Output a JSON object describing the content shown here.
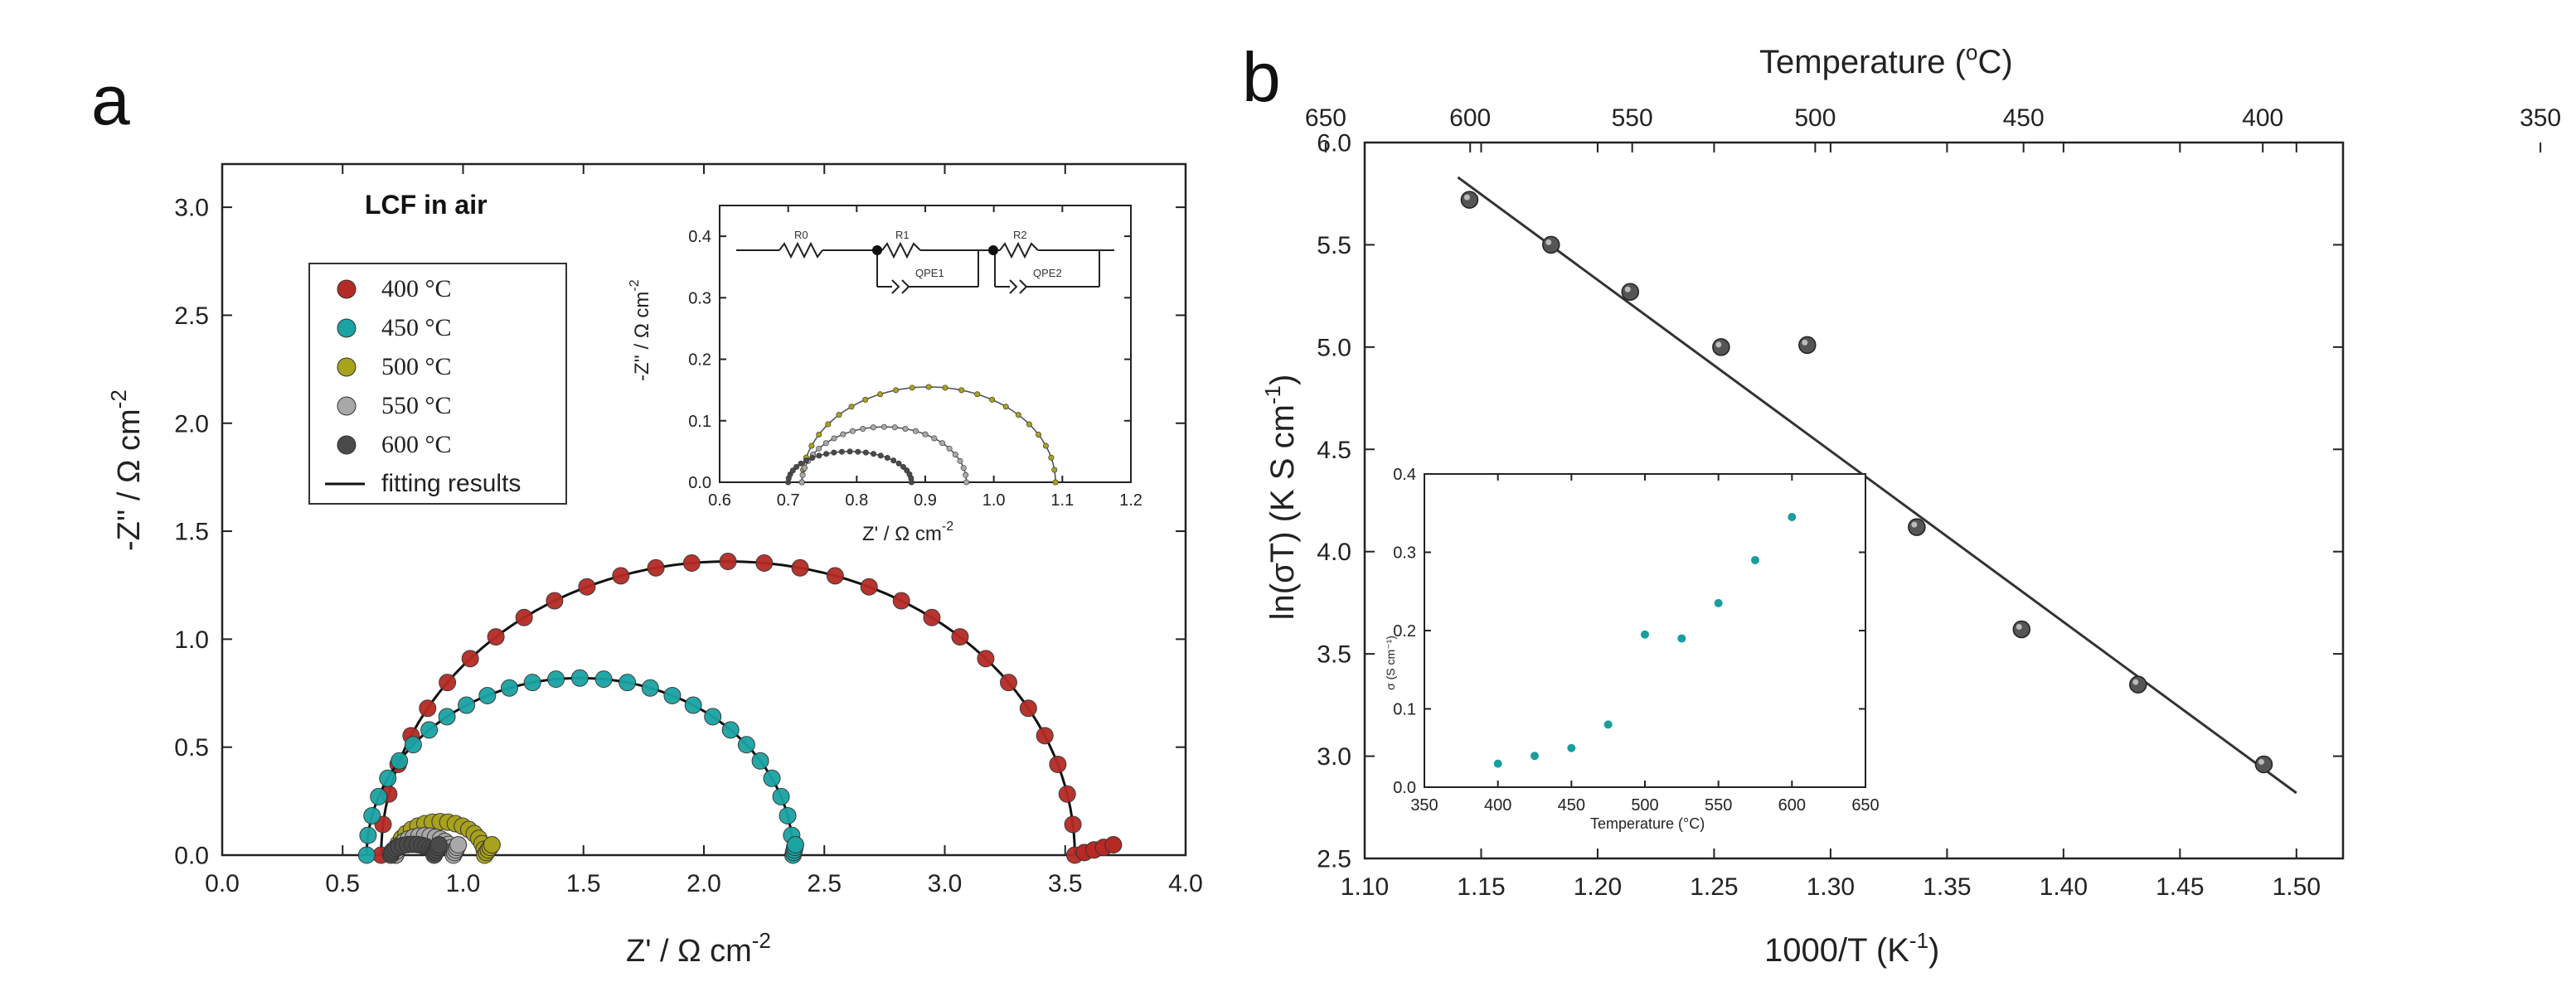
{
  "chart_data": [
    {
      "panel": "a",
      "type": "scatter",
      "title": "LCF in air",
      "xlabel": "Z' / Ω cm",
      "xlabel_sup": "-2",
      "ylabel": "-Z'' / Ω cm",
      "ylabel_sup": "-2",
      "xlim": [
        0,
        4
      ],
      "ylim": [
        0,
        3.2
      ],
      "xticks": [
        "0.0",
        "0.5",
        "1.0",
        "1.5",
        "2.0",
        "2.5",
        "3.0",
        "3.5",
        "4.0"
      ],
      "yticks": [
        "0.0",
        "0.5",
        "1.0",
        "1.5",
        "2.0",
        "2.5",
        "3.0"
      ],
      "legend": [
        {
          "label": "400 °C",
          "color": "#b52a24"
        },
        {
          "label": "450 °C",
          "color": "#1aa3a3"
        },
        {
          "label": "500 °C",
          "color": "#a8a21c"
        },
        {
          "label": "550 °C",
          "color": "#a8a8a8"
        },
        {
          "label": "600 °C",
          "color": "#4a4a4a"
        },
        {
          "label": "fitting results",
          "color": "#111111"
        }
      ],
      "series": [
        {
          "name": "400 °C",
          "color": "#b52a24",
          "x0": 0.66,
          "x1": 3.54,
          "ymax": 1.36,
          "n": 30,
          "tail_end": 3.7
        },
        {
          "name": "450 °C",
          "color": "#1aa3a3",
          "x0": 0.6,
          "x1": 2.37,
          "ymax": 0.82,
          "n": 28,
          "tail_end": 2.38
        },
        {
          "name": "500 °C",
          "color": "#a8a21c",
          "x0": 0.72,
          "x1": 1.09,
          "ymax": 0.155,
          "n": 18,
          "tail_end": 1.12
        },
        {
          "name": "550 °C",
          "color": "#a8a8a8",
          "x0": 0.72,
          "x1": 0.96,
          "ymax": 0.09,
          "n": 16,
          "tail_end": 0.98
        },
        {
          "name": "600 °C",
          "color": "#4a4a4a",
          "x0": 0.7,
          "x1": 0.88,
          "ymax": 0.05,
          "n": 14,
          "tail_end": 0.9
        }
      ],
      "inset": {
        "xlabel": "Z' / Ω cm",
        "xlabel_sup": "-2",
        "ylabel": "-Z'' / Ω cm",
        "ylabel_sup": "-2",
        "xlim": [
          0.6,
          1.2
        ],
        "ylim": [
          0,
          0.45
        ],
        "xticks": [
          "0.6",
          "0.7",
          "0.8",
          "0.9",
          "1.0",
          "1.1",
          "1.2"
        ],
        "yticks": [
          "0.0",
          "0.1",
          "0.2",
          "0.3",
          "0.4"
        ],
        "circuit_labels": [
          "R0",
          "R1",
          "R2",
          "QPE1",
          "QPE2"
        ]
      }
    },
    {
      "panel": "b",
      "type": "scatter",
      "xlabel": "1000/T (K",
      "xlabel_sup": "-1",
      "ylabel": "ln(σT) (K S cm",
      "ylabel_sup": "-1",
      "top_xlabel": "Temperature (",
      "top_xlabel_sup": "o",
      "top_xlabel_end": "C)",
      "xlim": [
        1.1,
        1.52
      ],
      "ylim": [
        2.5,
        6.0
      ],
      "xticks": [
        "1.10",
        "1.15",
        "1.20",
        "1.25",
        "1.30",
        "1.35",
        "1.40",
        "1.45",
        "1.50"
      ],
      "yticks": [
        "2.5",
        "3.0",
        "3.5",
        "4.0",
        "4.5",
        "5.0",
        "5.5",
        "6.0"
      ],
      "top_ticks": [
        "650",
        "600",
        "550",
        "500",
        "450",
        "400",
        "350"
      ],
      "x": [
        1.145,
        1.18,
        1.214,
        1.253,
        1.29,
        1.337,
        1.382,
        1.432,
        1.486
      ],
      "y": [
        5.72,
        5.5,
        5.27,
        5.0,
        5.01,
        4.12,
        3.62,
        3.35,
        2.96
      ],
      "fit": {
        "x": [
          1.14,
          1.5
        ],
        "y": [
          5.83,
          2.82
        ]
      },
      "inset": {
        "xlabel": "Temperature (°C)",
        "ylabel": "σ (S cm⁻¹)",
        "xlim": [
          350,
          650
        ],
        "ylim": [
          0,
          0.4
        ],
        "xticks": [
          "350",
          "400",
          "450",
          "500",
          "550",
          "600",
          "650"
        ],
        "yticks": [
          "0.0",
          "0.1",
          "0.2",
          "0.3",
          "0.4"
        ],
        "x": [
          400,
          425,
          450,
          475,
          500,
          525,
          550,
          575,
          600
        ],
        "y": [
          0.03,
          0.04,
          0.05,
          0.08,
          0.195,
          0.19,
          0.235,
          0.29,
          0.345
        ]
      }
    }
  ],
  "panel_labels": {
    "a": "a",
    "b": "b"
  }
}
